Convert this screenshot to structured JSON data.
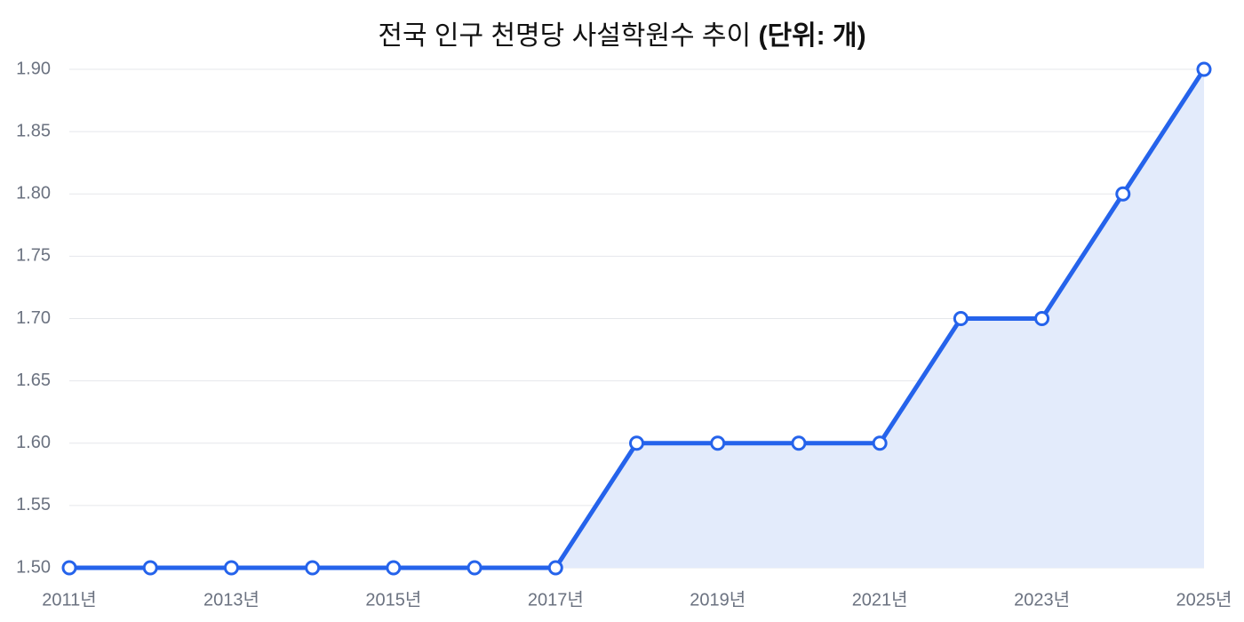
{
  "chart_data": {
    "type": "line",
    "title": "전국 인구 천명당 사설학원수 추이",
    "unit_note": "(단위: 개)",
    "categories": [
      "2011년",
      null,
      "2013년",
      null,
      "2015년",
      null,
      "2017년",
      null,
      "2019년",
      null,
      "2021년",
      null,
      "2023년",
      null,
      "2025년"
    ],
    "values": [
      1.5,
      1.5,
      1.5,
      1.5,
      1.5,
      1.5,
      1.5,
      1.6,
      1.6,
      1.6,
      1.6,
      1.7,
      1.7,
      1.8,
      1.9
    ],
    "color": "#2563eb",
    "area_color": "#e3ebfb",
    "ylim": [
      1.5,
      1.9
    ],
    "yticks": [
      {
        "value": 1.5,
        "label": "1.50"
      },
      1.55,
      {
        "value": 1.6,
        "label": "1.60"
      },
      1.65,
      {
        "value": 1.7,
        "label": "1.70"
      },
      1.75,
      {
        "value": 1.8,
        "label": "1.80"
      },
      1.85,
      {
        "value": 1.9,
        "label": "1.90"
      }
    ],
    "grid": true
  }
}
